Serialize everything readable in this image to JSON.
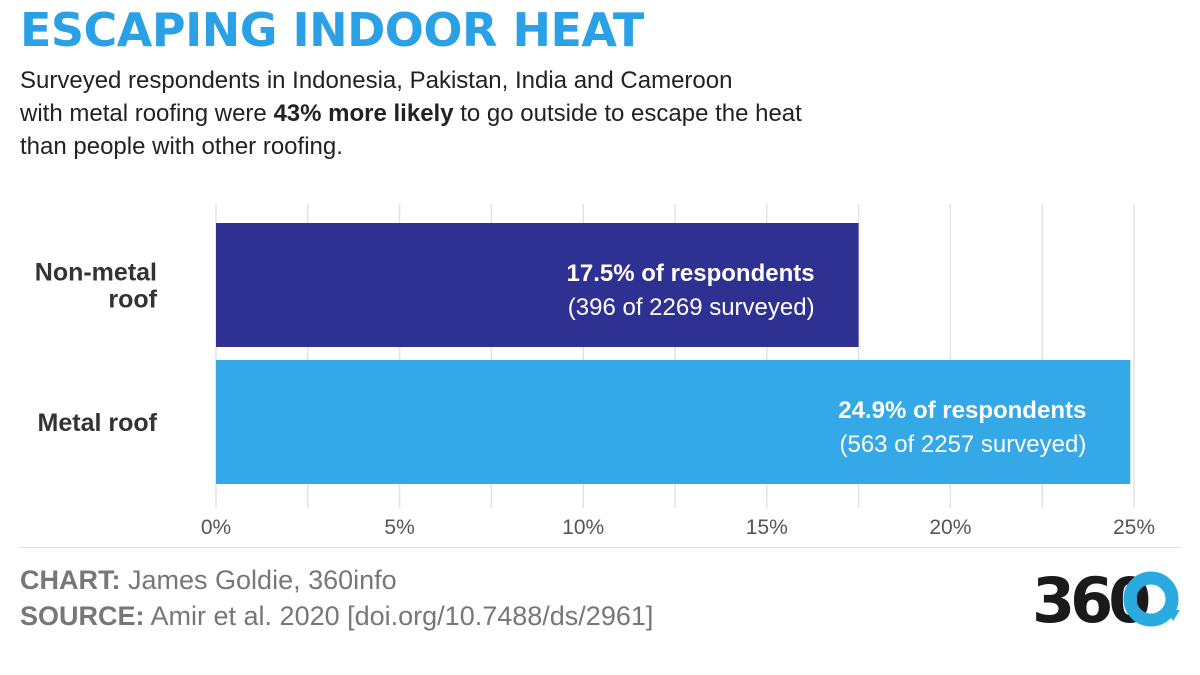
{
  "title": "ESCAPING INDOOR HEAT",
  "subtitle": {
    "line1": "Surveyed respondents in Indonesia, Pakistan, India and Cameroon",
    "line2_pre": "with metal roofing were ",
    "line2_bold": "43% more likely",
    "line2_post": " to go outside to escape the heat",
    "line3": "than people with other roofing."
  },
  "colors": {
    "title": "#2aa0e6",
    "bar_nonmetal": "#2e3192",
    "bar_metal": "#35a8e8",
    "grid": "#e3e3e3",
    "axis_text": "#555555",
    "label_text": "#333333",
    "logo_dark": "#1a1a1a",
    "logo_accent": "#29abe2"
  },
  "chart_data": {
    "type": "bar",
    "orientation": "horizontal",
    "categories": [
      "Non-metal roof",
      "Metal roof"
    ],
    "category_label_lines": [
      [
        "Non-metal",
        "roof"
      ],
      [
        "Metal roof"
      ]
    ],
    "values": [
      17.5,
      24.9
    ],
    "data_labels": [
      {
        "main": "17.5% of respondents",
        "sub": "(396 of 2269 surveyed)"
      },
      {
        "main": "24.9% of respondents",
        "sub": "(563 of 2257 surveyed)"
      }
    ],
    "xlim": [
      0,
      25
    ],
    "xticks": [
      0,
      5,
      10,
      15,
      20,
      25
    ],
    "xtick_labels": [
      "0%",
      "5%",
      "10%",
      "15%",
      "20%",
      "25%"
    ],
    "minor_gridlines": [
      2.5,
      7.5,
      12.5,
      17.5,
      22.5
    ],
    "grid": true,
    "title": "",
    "xlabel": "",
    "ylabel": ""
  },
  "credits": {
    "chart_label": "CHART:",
    "chart_value": "James Goldie, 360info",
    "source_label": "SOURCE:",
    "source_value": "Amir et al. 2020 [doi.org/10.7488/ds/2961]"
  },
  "logo": {
    "text": "360"
  }
}
